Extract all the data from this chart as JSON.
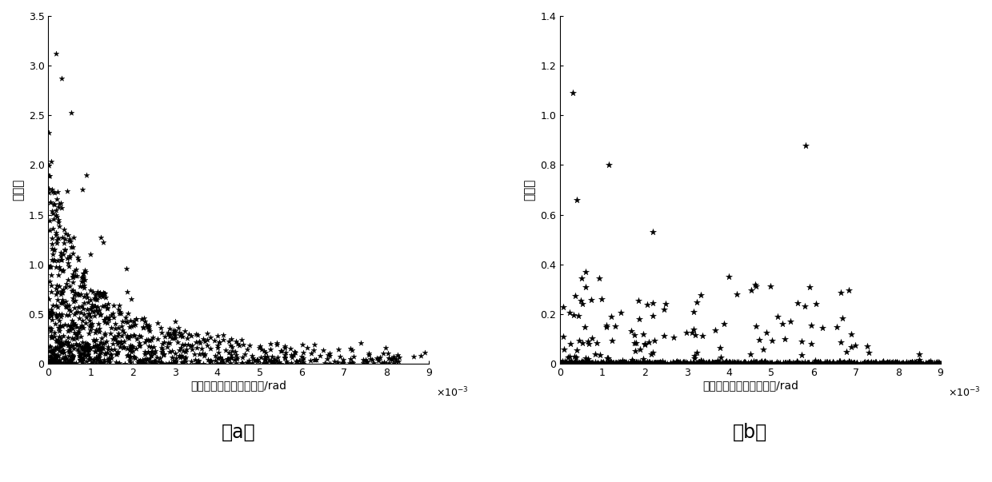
{
  "xlabel": "真实视线和恒星光线夹角/rad",
  "ylabel": "误差比",
  "xlim": [
    0,
    0.009
  ],
  "ylim_a": [
    0,
    3.5
  ],
  "ylim_b": [
    0,
    1.4
  ],
  "xticks": [
    0,
    0.001,
    0.002,
    0.003,
    0.004,
    0.005,
    0.006,
    0.007,
    0.008,
    0.009
  ],
  "xtick_labels": [
    "0",
    "1",
    "2",
    "3",
    "4",
    "5",
    "6",
    "7",
    "8",
    "9"
  ],
  "yticks_a": [
    0,
    0.5,
    1.0,
    1.5,
    2.0,
    2.5,
    3.0,
    3.5
  ],
  "yticks_b": [
    0,
    0.2,
    0.4,
    0.6,
    0.8,
    1.0,
    1.2,
    1.4
  ],
  "label_a": "（a）",
  "label_b": "（b）",
  "marker": "*",
  "color": "black",
  "markersize_a": 5,
  "markersize_b": 6
}
